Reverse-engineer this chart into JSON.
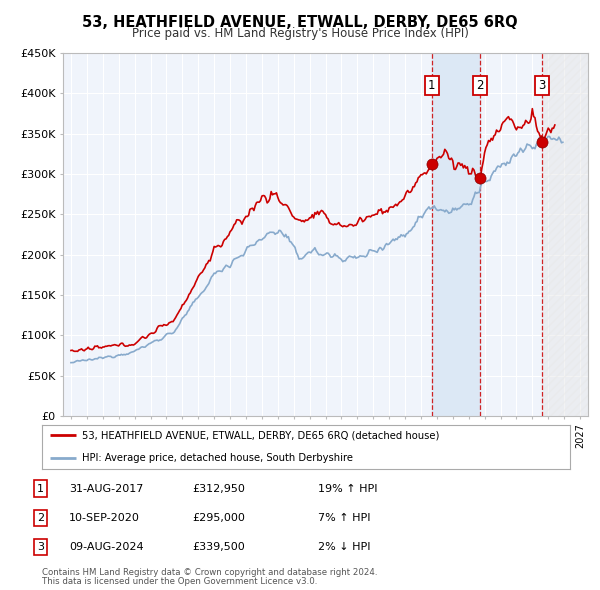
{
  "title": "53, HEATHFIELD AVENUE, ETWALL, DERBY, DE65 6RQ",
  "subtitle": "Price paid vs. HM Land Registry's House Price Index (HPI)",
  "ylim": [
    0,
    450000
  ],
  "xlim_start": 1994.5,
  "xlim_end": 2027.5,
  "yticks": [
    0,
    50000,
    100000,
    150000,
    200000,
    250000,
    300000,
    350000,
    400000,
    450000
  ],
  "ytick_labels": [
    "£0",
    "£50K",
    "£100K",
    "£150K",
    "£200K",
    "£250K",
    "£300K",
    "£350K",
    "£400K",
    "£450K"
  ],
  "sale_color": "#cc0000",
  "hpi_color": "#88aacc",
  "bg_color": "#ffffff",
  "plot_bg_color": "#f0f4fb",
  "grid_color": "#ffffff",
  "shade_color": "#dce8f5",
  "hatch_color": "#cccccc",
  "transactions": [
    {
      "num": 1,
      "date": "31-AUG-2017",
      "price": 312950,
      "x": 2017.667,
      "label": "19% ↑ HPI"
    },
    {
      "num": 2,
      "date": "10-SEP-2020",
      "price": 295000,
      "x": 2020.72,
      "label": "7% ↑ HPI"
    },
    {
      "num": 3,
      "date": "09-AUG-2024",
      "price": 339500,
      "x": 2024.61,
      "label": "2% ↓ HPI"
    }
  ],
  "legend_line1": "53, HEATHFIELD AVENUE, ETWALL, DERBY, DE65 6RQ (detached house)",
  "legend_line2": "HPI: Average price, detached house, South Derbyshire",
  "footnote1": "Contains HM Land Registry data © Crown copyright and database right 2024.",
  "footnote2": "This data is licensed under the Open Government Licence v3.0.",
  "table_rows": [
    {
      "num": "1",
      "date": "31-AUG-2017",
      "price": "£312,950",
      "pct": "19% ↑ HPI"
    },
    {
      "num": "2",
      "date": "10-SEP-2020",
      "price": "£295,000",
      "pct": "7% ↑ HPI"
    },
    {
      "num": "3",
      "date": "09-AUG-2024",
      "price": "£339,500",
      "pct": "2% ↓ HPI"
    }
  ]
}
